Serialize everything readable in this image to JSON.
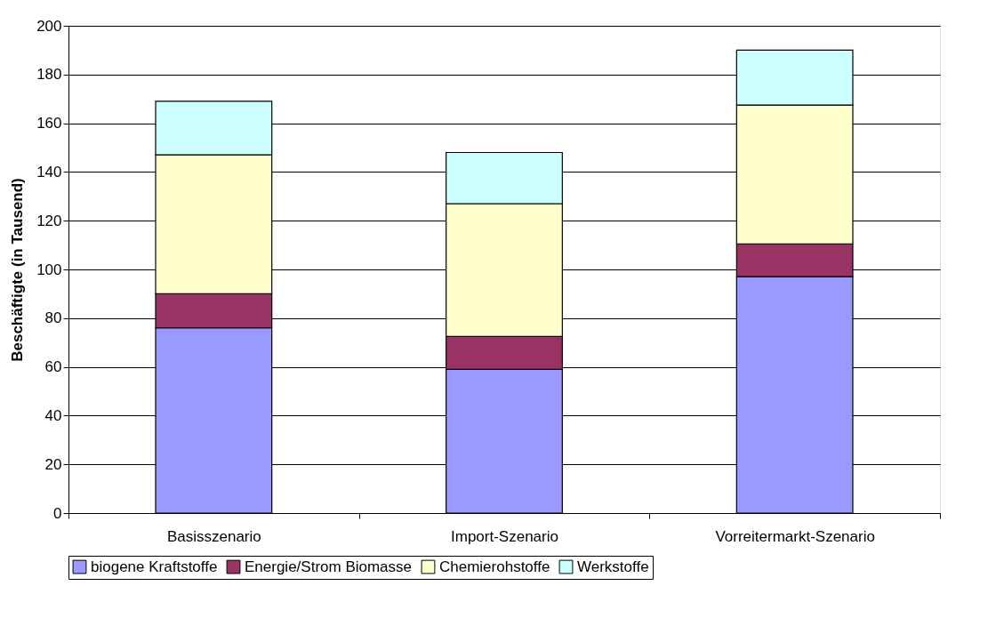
{
  "chart_data": {
    "type": "bar",
    "stacked": true,
    "ylabel": "Beschäftigte (in Tausend)",
    "categories": [
      "Basisszenario",
      "Import-Szenario",
      "Vorreitermarkt-Szenario"
    ],
    "series": [
      {
        "name": "biogene Kraftstoffe",
        "color": "#9999ff",
        "values": [
          76,
          59,
          97
        ]
      },
      {
        "name": "Energie/Strom Biomasse",
        "color": "#993366",
        "values": [
          14,
          13.5,
          13.5
        ]
      },
      {
        "name": "Chemierohstoffe",
        "color": "#ffffcc",
        "values": [
          57,
          54.5,
          57
        ]
      },
      {
        "name": "Werkstoffe",
        "color": "#ccffff",
        "values": [
          22,
          21,
          22.5
        ]
      }
    ],
    "ylim": [
      0,
      200
    ],
    "yticks": [
      0,
      20,
      40,
      60,
      80,
      100,
      120,
      140,
      160,
      180,
      200
    ],
    "grid": "y",
    "legend": "bottom"
  }
}
